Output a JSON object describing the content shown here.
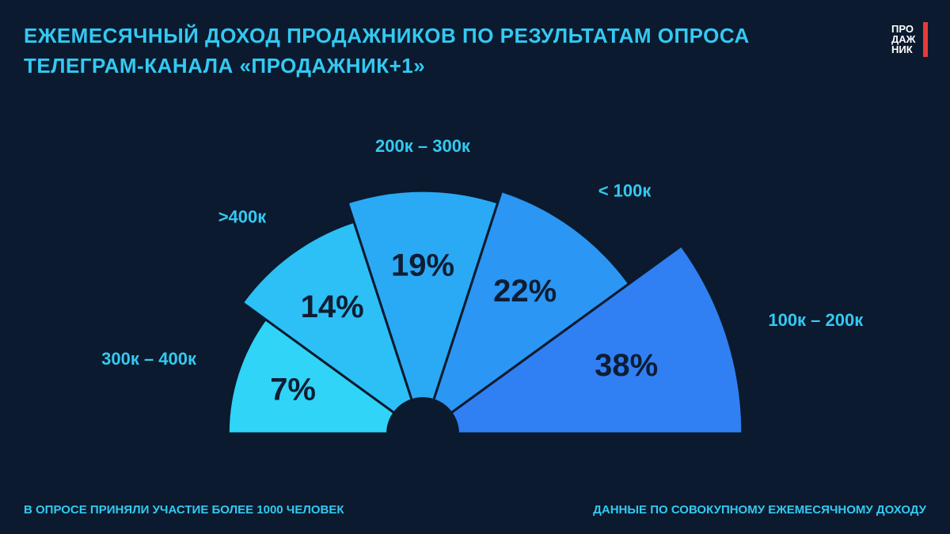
{
  "chart_data": {
    "type": "fan",
    "title": [
      "ЕЖЕМЕСЯЧНЫЙ ДОХОД ПРОДАЖНИКОВ ПО РЕЗУЛЬТАТАМ ОПРОСА",
      "ТЕЛЕГРАМ-КАНАЛА «ПРОДАЖНИК+1»"
    ],
    "categories": [
      "300к – 400к",
      ">400к",
      "200к – 300к",
      "< 100к",
      "100к – 200к"
    ],
    "values": [
      7,
      14,
      19,
      22,
      38
    ],
    "value_labels": [
      "7%",
      "14%",
      "19%",
      "22%",
      "38%"
    ],
    "colors": [
      "#2fd4f7",
      "#2cc0f6",
      "#2aa9f5",
      "#2b96f4",
      "#3080f3"
    ],
    "notes": [
      "В ОПРОСЕ ПРИНЯЛИ УЧАСТИЕ БОЛЕЕ 1000 ЧЕЛОВЕК",
      "ДАННЫЕ ПО СОВОКУПНОМУ ЕЖЕМЕСЯЧНОМУ ДОХОДУ"
    ],
    "logo": [
      "ПРО",
      "ДАЖ",
      "НИК"
    ]
  }
}
